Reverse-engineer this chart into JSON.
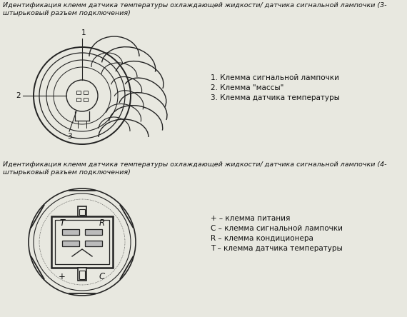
{
  "bg_color": "#e8e8e0",
  "title1": "Идентификация клемм датчика температуры охлаждающей жидкости/ датчика сигнальной лампочки (3-\nштырьковый разъем подключения)",
  "title2": "Идентификация клемм датчика температуры охлаждающей жидкости/ датчика сигнальной лампочки (4-\nштырьковый разъем подключения)",
  "legend1": [
    "1. Клемма сигнальной лампочки",
    "2. Клемма \"массы\"",
    "3. Клемма датчика температуры"
  ],
  "legend2": [
    "+ – клемма питания",
    "C – клемма сигнальной лампочки",
    "R – клемма кондиционера",
    "T – клемма датчика температуры"
  ],
  "text_color": "#111111",
  "line_color": "#222222",
  "title_fontsize": 6.8,
  "legend_fontsize": 7.5,
  "label_fontsize": 7.5
}
